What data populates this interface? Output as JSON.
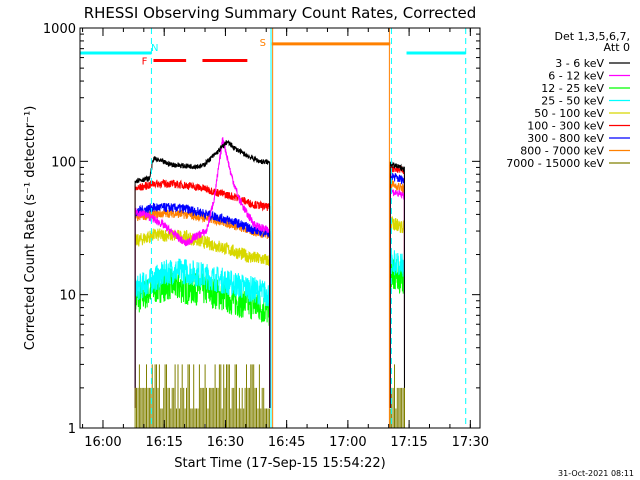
{
  "chart_data": {
    "type": "line",
    "title": "RHESSI Observing Summary Count Rates, Corrected",
    "xlabel": "Start Time (17-Sep-15 15:54:22)",
    "ylabel": "Corrected Count Rate (s⁻¹ detector⁻¹)",
    "yscale": "log",
    "ylim": [
      1,
      1000
    ],
    "xlim_minutes": [
      0,
      98
    ],
    "x_tick_labels": [
      "16:00",
      "16:15",
      "16:30",
      "16:45",
      "17:00",
      "17:15",
      "17:30"
    ],
    "x_tick_minutes": [
      5.63,
      20.63,
      35.63,
      50.63,
      65.63,
      80.63,
      95.63
    ],
    "y_tick_labels": [
      "1",
      "10",
      "100",
      "1000"
    ],
    "y_tick_values": [
      1,
      10,
      100,
      1000
    ],
    "legend_header": [
      "Det 1,3,5,6,7,",
      "Att 0"
    ],
    "legend_placement": "right",
    "timestamp": "31-Oct-2021 08:11",
    "flags": [
      {
        "label": "N",
        "color": "#00ffff"
      },
      {
        "label": "F",
        "color": "#ff0000"
      },
      {
        "label": "S",
        "color": "#ff8000"
      }
    ],
    "series": [
      {
        "name": "3 - 6 keV",
        "color": "#000000"
      },
      {
        "name": "6 - 12 keV",
        "color": "#ff00ff"
      },
      {
        "name": "12 - 25 keV",
        "color": "#00ff00"
      },
      {
        "name": "25 - 50 keV",
        "color": "#00ffff"
      },
      {
        "name": "50 - 100 keV",
        "color": "#d8d800"
      },
      {
        "name": "100 - 300 keV",
        "color": "#ff0000"
      },
      {
        "name": "300 - 800 keV",
        "color": "#0000ff"
      },
      {
        "name": "800 - 7000 keV",
        "color": "#ff8000"
      },
      {
        "name": "7000 - 15000 keV",
        "color": "#808000"
      }
    ],
    "segments": [
      {
        "t_start": 13.5,
        "t_end": 46.5,
        "levels": {
          "3 - 6 keV": [
            [
              13.5,
              72
            ],
            [
              17,
              74
            ],
            [
              18,
              105
            ],
            [
              22,
              95
            ],
            [
              26,
              92
            ],
            [
              30,
              92
            ],
            [
              34,
              120
            ],
            [
              36,
              140
            ],
            [
              38,
              125
            ],
            [
              41,
              110
            ],
            [
              44,
              100
            ],
            [
              46.5,
              98
            ]
          ],
          "6 - 12 keV": [
            [
              13.5,
              42
            ],
            [
              16,
              40
            ],
            [
              20,
              34
            ],
            [
              24,
              27
            ],
            [
              26,
              24
            ],
            [
              28,
              27
            ],
            [
              31,
              30
            ],
            [
              33,
              55
            ],
            [
              35,
              150
            ],
            [
              37,
              80
            ],
            [
              39,
              52
            ],
            [
              41,
              40
            ],
            [
              43,
              33
            ],
            [
              46.5,
              30
            ]
          ],
          "12 - 25 keV": [
            [
              13.5,
              9
            ],
            [
              18,
              11
            ],
            [
              22,
              12
            ],
            [
              26,
              11
            ],
            [
              30,
              11
            ],
            [
              34,
              10
            ],
            [
              38,
              9
            ],
            [
              42,
              8.5
            ],
            [
              46.5,
              7.5
            ]
          ],
          "25 - 50 keV": [
            [
              13.5,
              11
            ],
            [
              18,
              13
            ],
            [
              22,
              15
            ],
            [
              26,
              15
            ],
            [
              30,
              14
            ],
            [
              34,
              13
            ],
            [
              38,
              12
            ],
            [
              42,
              11
            ],
            [
              46.5,
              10
            ]
          ],
          "50 - 100 keV": [
            [
              13.5,
              25
            ],
            [
              18,
              28
            ],
            [
              22,
              28
            ],
            [
              26,
              27
            ],
            [
              30,
              25
            ],
            [
              34,
              23
            ],
            [
              38,
              21
            ],
            [
              42,
              19
            ],
            [
              46.5,
              18
            ]
          ],
          "100 - 300 keV": [
            [
              13.5,
              62
            ],
            [
              18,
              68
            ],
            [
              22,
              68
            ],
            [
              26,
              66
            ],
            [
              30,
              63
            ],
            [
              34,
              58
            ],
            [
              38,
              54
            ],
            [
              42,
              48
            ],
            [
              46.5,
              45
            ]
          ],
          "300 - 800 keV": [
            [
              13.5,
              42
            ],
            [
              18,
              45
            ],
            [
              22,
              45
            ],
            [
              26,
              44
            ],
            [
              30,
              41
            ],
            [
              34,
              38
            ],
            [
              38,
              35
            ],
            [
              42,
              31
            ],
            [
              46.5,
              29
            ]
          ],
          "800 - 7000 keV": [
            [
              13.5,
              38
            ],
            [
              18,
              40
            ],
            [
              22,
              41
            ],
            [
              26,
              40
            ],
            [
              30,
              38
            ],
            [
              34,
              36
            ],
            [
              38,
              33
            ],
            [
              42,
              30
            ],
            [
              46.5,
              28
            ]
          ]
        }
      },
      {
        "t_start": 76,
        "t_end": 79.5,
        "levels": {
          "3 - 6 keV": [
            [
              76,
              95
            ],
            [
              79.5,
              88
            ]
          ],
          "6 - 12 keV": [
            [
              76,
              60
            ],
            [
              79.5,
              55
            ]
          ],
          "12 - 25 keV": [
            [
              76,
              15
            ],
            [
              79.5,
              13
            ]
          ],
          "25 - 50 keV": [
            [
              76,
              18
            ],
            [
              79.5,
              16
            ]
          ],
          "50 - 100 keV": [
            [
              76,
              35
            ],
            [
              79.5,
              32
            ]
          ],
          "100 - 300 keV": [
            [
              76,
              90
            ],
            [
              79.5,
              85
            ]
          ],
          "300 - 800 keV": [
            [
              76,
              78
            ],
            [
              79.5,
              72
            ]
          ],
          "800 - 7000 keV": [
            [
              76,
              68
            ],
            [
              79.5,
              62
            ]
          ]
        }
      }
    ],
    "flag_intervals": [
      {
        "flag": "N",
        "start": 0,
        "end": 17.5,
        "level": 650
      },
      {
        "flag": "N",
        "start": 80,
        "end": 94.5,
        "level": 650
      },
      {
        "flag": "F",
        "start": 18,
        "end": 26,
        "level": 570
      },
      {
        "flag": "F",
        "start": 30,
        "end": 41,
        "level": 570
      },
      {
        "flag": "S",
        "start": 47,
        "end": 76,
        "level": 760
      }
    ],
    "event_lines": [
      {
        "t": 17.5,
        "color": "#00ffff",
        "style": "dashed"
      },
      {
        "t": 46.8,
        "color": "#00ffff",
        "style": "solid"
      },
      {
        "t": 47.2,
        "color": "#ff8000",
        "style": "solid"
      },
      {
        "t": 75.8,
        "color": "#ff8000",
        "style": "solid"
      },
      {
        "t": 76.3,
        "color": "#00ffff",
        "style": "dashed"
      },
      {
        "t": 94.5,
        "color": "#00ffff",
        "style": "dashed"
      }
    ]
  }
}
